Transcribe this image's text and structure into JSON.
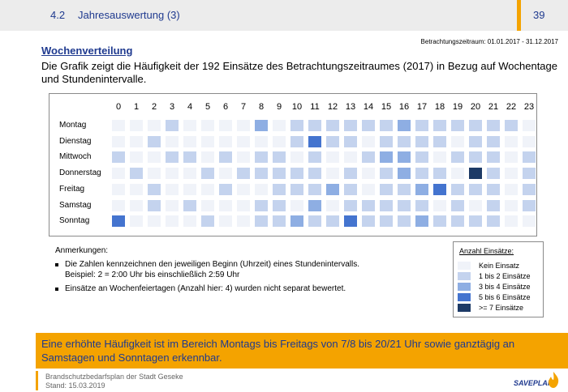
{
  "header": {
    "number": "4.2",
    "title": "Jahresauswertung (3)",
    "page": "39"
  },
  "period": "Betrachtungszeitraum: 01.01.2017 - 31.12.2017",
  "section_title": "Wochenverteilung",
  "intro": "Die Grafik zeigt die Häufigkeit der 192 Einsätze des Betrachtungszeitraumes (2017) in Bezug auf Wochentage und Stundenintervalle.",
  "chart_data": {
    "type": "heatmap",
    "x": [
      "0",
      "1",
      "2",
      "3",
      "4",
      "5",
      "6",
      "7",
      "8",
      "9",
      "10",
      "11",
      "12",
      "13",
      "14",
      "15",
      "16",
      "17",
      "18",
      "19",
      "20",
      "21",
      "22",
      "23"
    ],
    "y": [
      "Montag",
      "Dienstag",
      "Mittwoch",
      "Donnerstag",
      "Freitag",
      "Samstag",
      "Sonntag"
    ],
    "levels": [
      [
        0,
        0,
        0,
        1,
        0,
        0,
        0,
        0,
        2,
        0,
        1,
        1,
        1,
        1,
        1,
        1,
        2,
        1,
        1,
        1,
        1,
        1,
        1,
        0
      ],
      [
        0,
        0,
        1,
        0,
        0,
        0,
        0,
        0,
        0,
        0,
        1,
        3,
        1,
        1,
        0,
        1,
        1,
        1,
        1,
        0,
        1,
        1,
        0,
        0
      ],
      [
        1,
        0,
        0,
        1,
        1,
        0,
        1,
        0,
        1,
        1,
        0,
        1,
        0,
        0,
        1,
        2,
        2,
        1,
        0,
        1,
        1,
        1,
        0,
        1
      ],
      [
        0,
        1,
        0,
        0,
        0,
        1,
        0,
        1,
        1,
        1,
        1,
        1,
        0,
        1,
        0,
        1,
        2,
        1,
        1,
        0,
        4,
        1,
        0,
        1
      ],
      [
        0,
        0,
        1,
        0,
        0,
        0,
        1,
        0,
        0,
        1,
        1,
        1,
        2,
        1,
        0,
        1,
        1,
        2,
        3,
        1,
        1,
        1,
        0,
        1
      ],
      [
        0,
        0,
        1,
        0,
        1,
        0,
        0,
        0,
        1,
        1,
        0,
        2,
        0,
        1,
        1,
        1,
        1,
        1,
        0,
        1,
        0,
        1,
        0,
        1
      ],
      [
        3,
        0,
        0,
        0,
        0,
        1,
        0,
        0,
        1,
        1,
        2,
        1,
        1,
        3,
        1,
        1,
        1,
        2,
        1,
        1,
        1,
        1,
        0,
        0
      ]
    ],
    "level_colors": [
      "#f0f3f9",
      "#c4d3ee",
      "#8eaee3",
      "#4474cf",
      "#1d3a66"
    ]
  },
  "notes": {
    "title": "Anmerkungen:",
    "item1_line1": "Die Zahlen kennzeichnen den jeweiligen Beginn (Uhrzeit) eines Stundenintervalls.",
    "item1_line2": "Beispiel: 2 = 2:00 Uhr bis einschließlich 2:59 Uhr",
    "item2": "Einsätze an Wochenfeiertagen (Anzahl hier: 4) wurden nicht separat bewertet."
  },
  "legend": {
    "title": "Anzahl Einsätze:",
    "items": [
      "Kein Einsatz",
      "1 bis 2 Einsätze",
      "3 bis 4 Einsätze",
      "5 bis 6 Einsätze",
      ">= 7 Einsätze"
    ]
  },
  "summary": "Eine erhöhte Häufigkeit ist im Bereich Montags bis Freitags von 7/8 bis 20/21 Uhr sowie ganztägig an Samstagen und Sonntagen erkennbar.",
  "footer": {
    "line1": "Brandschutzbedarfsplan der Stadt Geseke",
    "line2": "Stand: 15.03.2019",
    "logo": "SAVEPLAN"
  }
}
